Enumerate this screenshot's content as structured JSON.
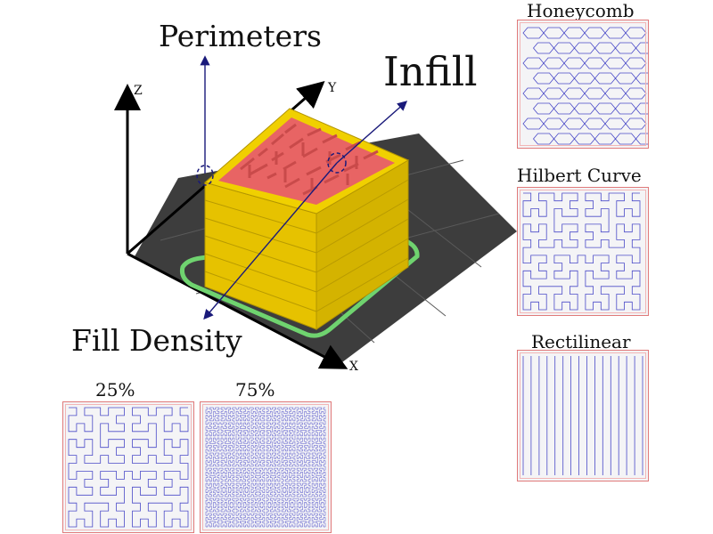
{
  "labels": {
    "perimeters": "Perimeters",
    "infill": "Infill",
    "fill_density": "Fill Density",
    "axis_x": "X",
    "axis_y": "Y",
    "axis_z": "Z"
  },
  "patterns": [
    {
      "name": "Honeycomb",
      "icon": "honeycomb-pattern-icon"
    },
    {
      "name": "Hilbert Curve",
      "icon": "hilbert-curve-pattern-icon"
    },
    {
      "name": "Rectilinear",
      "icon": "rectilinear-pattern-icon"
    }
  ],
  "densities": [
    {
      "label": "25%",
      "value": 25,
      "icon": "hilbert-curve-pattern-icon"
    },
    {
      "label": "75%",
      "value": 75,
      "icon": "hilbert-curve-pattern-icon"
    }
  ],
  "colors": {
    "wall": "#e6c200",
    "wall_dark": "#c9a800",
    "infill": "#e86464",
    "infill_dark": "#c94a4a",
    "bed": "#3b3b3b",
    "skirt": "#6fd36f",
    "arrow": "#1a1a7a",
    "pattern_line": "#4a4ac8",
    "tile_border": "#e07a7a"
  }
}
